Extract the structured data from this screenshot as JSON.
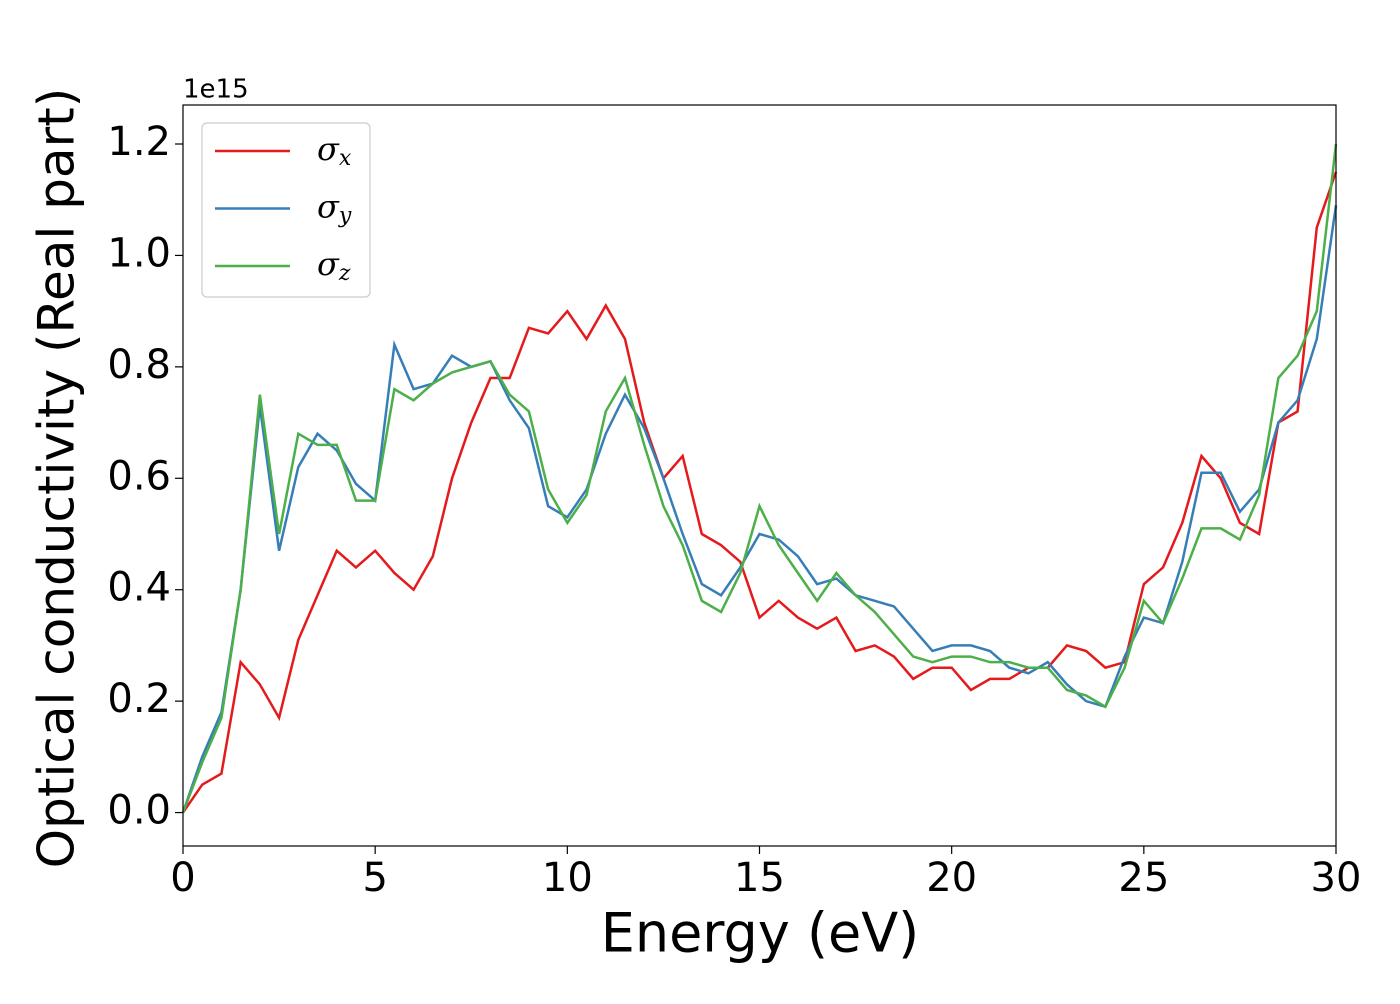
{
  "chart_data": {
    "type": "line",
    "x_label": "Energy (eV)",
    "y_label": "Optical conductivity (Real part)",
    "y_offset_label": "1e15",
    "x": [
      0,
      0.5,
      1,
      1.5,
      2,
      2.5,
      3,
      3.5,
      4,
      4.5,
      5,
      5.5,
      6,
      6.5,
      7,
      7.5,
      8,
      8.5,
      9,
      9.5,
      10,
      10.5,
      11,
      11.5,
      12,
      12.5,
      13,
      13.5,
      14,
      14.5,
      15,
      15.5,
      16,
      16.5,
      17,
      17.5,
      18,
      18.5,
      19,
      19.5,
      20,
      20.5,
      21,
      21.5,
      22,
      22.5,
      23,
      23.5,
      24,
      24.5,
      25,
      25.5,
      26,
      26.5,
      27,
      27.5,
      28,
      28.5,
      29,
      29.5,
      30
    ],
    "series": [
      {
        "name": "σx",
        "color": "#e41a1c",
        "values": [
          0,
          0.05,
          0.07,
          0.27,
          0.23,
          0.17,
          0.31,
          0.39,
          0.47,
          0.44,
          0.47,
          0.43,
          0.4,
          0.46,
          0.6,
          0.7,
          0.78,
          0.78,
          0.87,
          0.86,
          0.9,
          0.85,
          0.91,
          0.85,
          0.7,
          0.6,
          0.64,
          0.5,
          0.48,
          0.45,
          0.35,
          0.38,
          0.35,
          0.33,
          0.35,
          0.29,
          0.3,
          0.28,
          0.24,
          0.26,
          0.26,
          0.22,
          0.24,
          0.24,
          0.26,
          0.26,
          0.3,
          0.29,
          0.26,
          0.27,
          0.41,
          0.44,
          0.52,
          0.64,
          0.6,
          0.52,
          0.5,
          0.7,
          0.72,
          1.05,
          1.15
        ]
      },
      {
        "name": "σy",
        "color": "#377eb8",
        "values": [
          0,
          0.1,
          0.18,
          0.4,
          0.73,
          0.47,
          0.62,
          0.68,
          0.65,
          0.59,
          0.56,
          0.84,
          0.76,
          0.77,
          0.82,
          0.8,
          0.81,
          0.74,
          0.69,
          0.55,
          0.53,
          0.58,
          0.68,
          0.75,
          0.69,
          0.6,
          0.5,
          0.41,
          0.39,
          0.44,
          0.5,
          0.49,
          0.46,
          0.41,
          0.42,
          0.39,
          0.38,
          0.37,
          0.33,
          0.29,
          0.3,
          0.3,
          0.29,
          0.26,
          0.25,
          0.27,
          0.23,
          0.2,
          0.19,
          0.28,
          0.35,
          0.34,
          0.45,
          0.61,
          0.61,
          0.54,
          0.58,
          0.7,
          0.74,
          0.85,
          1.09
        ]
      },
      {
        "name": "σz",
        "color": "#4daf4a",
        "values": [
          0,
          0.09,
          0.17,
          0.4,
          0.75,
          0.5,
          0.68,
          0.66,
          0.66,
          0.56,
          0.56,
          0.76,
          0.74,
          0.77,
          0.79,
          0.8,
          0.81,
          0.75,
          0.72,
          0.58,
          0.52,
          0.57,
          0.72,
          0.78,
          0.66,
          0.55,
          0.48,
          0.38,
          0.36,
          0.43,
          0.55,
          0.48,
          0.43,
          0.38,
          0.43,
          0.39,
          0.36,
          0.32,
          0.28,
          0.27,
          0.28,
          0.28,
          0.27,
          0.27,
          0.26,
          0.26,
          0.22,
          0.21,
          0.19,
          0.26,
          0.38,
          0.34,
          0.42,
          0.51,
          0.51,
          0.49,
          0.57,
          0.78,
          0.82,
          0.9,
          1.2
        ]
      }
    ],
    "xlim": [
      0,
      30
    ],
    "xticks": [
      0,
      5,
      10,
      15,
      20,
      25,
      30
    ],
    "ylim": [
      -0.06,
      1.27
    ],
    "yticks": [
      {
        "value": 0,
        "label": "0.0"
      },
      0.2,
      0.4,
      0.6,
      0.8,
      {
        "value": 1,
        "label": "1.0"
      },
      1.2
    ],
    "grid": false,
    "legend": "upper left"
  }
}
